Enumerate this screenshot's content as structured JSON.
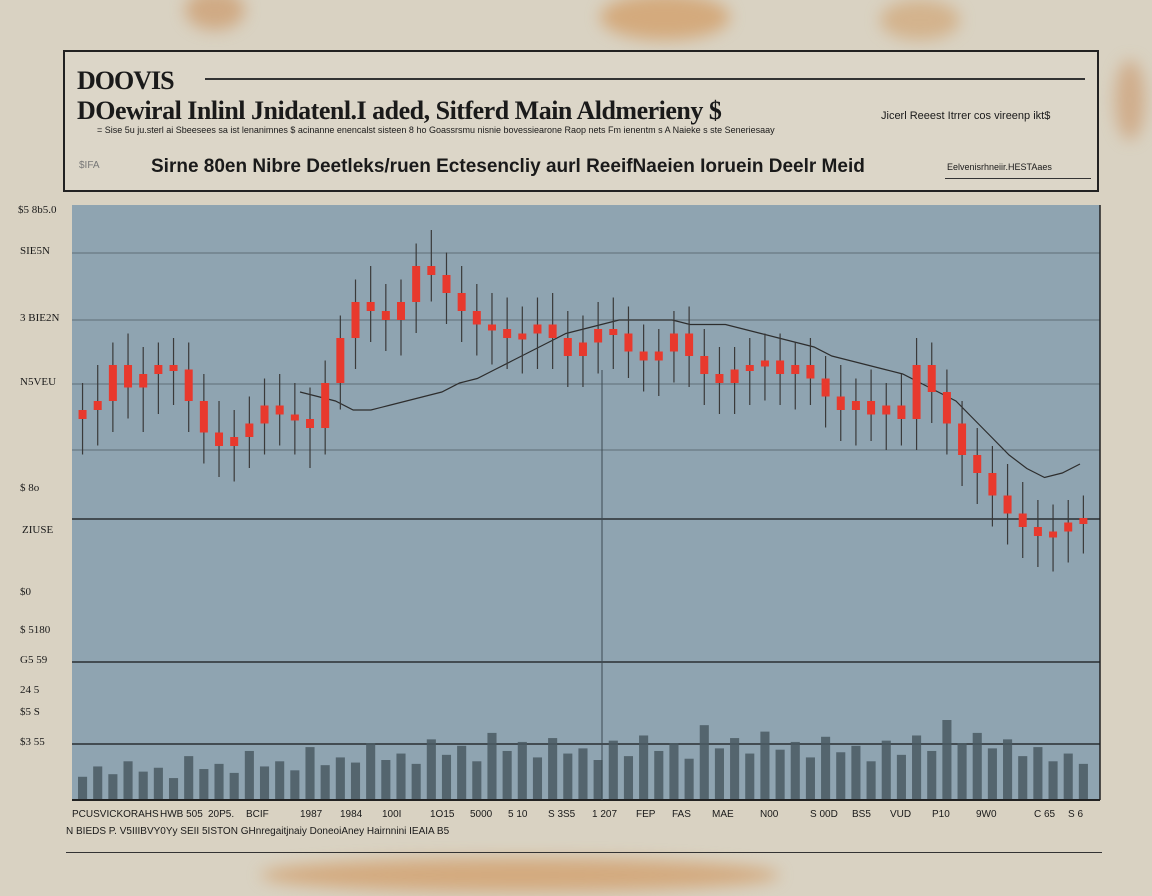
{
  "header": {
    "title": "DOOVIS",
    "subtitle": "DOewiral Inlinl Jnidatenl.I aded, Sitferd Main Aldmerieny $",
    "note_right": "Jicerl  Reeest  Itrrer cos vireenp ikt$",
    "fine_print": "= Sise 5u  ju.sterl  ai  Sbeesees  sa ist  lenanimnes  $ acinanne  enencalst  sisteen  8 ho  Goassrsmu  nisnie  bovessiearone  Raop  nets  Fm  ienentm  s  A  Naieke  s  ste  Seneriesaay",
    "caption": "Sirne 80en Nibre Deetleks/ruen Ectesencliy aurl ReeifNaeien Ioruein Deelr Meid",
    "caption_right": "Eelvenisrhneiir.HESTAaes",
    "small_mark": "$IFA"
  },
  "y_axis": {
    "top_label": "$5 8b5.0",
    "ticks": [
      "SIE5N",
      "3 BIE2N",
      "N5VEU",
      "$ 8o",
      "ZIUSE",
      "$0",
      "$ 5180",
      "G5 59",
      "24 5",
      "$5 S",
      "$3 55"
    ]
  },
  "x_axis": {
    "ticks": [
      "PCUSVICKORAHS",
      "HWB  505",
      "20P5.",
      "BCIF",
      "1987",
      "1984",
      "100I",
      "1O15",
      "5000",
      "5 10",
      "S  3S5",
      "1 207",
      "FEP",
      "FAS",
      "MAE",
      "N00",
      "S  00D",
      "BS5",
      "VUD",
      "P10",
      "9W0",
      "C 65",
      "S 6"
    ]
  },
  "footer": {
    "note": "N  BIEDS  P. V5IIIBVY0Yy  SEII  5ISTON  GHnregaitjnaiy DoneoiAney  Hairnnini IEAIA  B5"
  },
  "colors": {
    "plot_bg": "#8fa4b1",
    "candle": "#e8392d",
    "wick": "#3a3a3a",
    "volume": "#4a5a63"
  },
  "chart_data": {
    "type": "candlestick",
    "title": "",
    "xlabel": "",
    "ylabel": "",
    "ylim": [
      0,
      100
    ],
    "grid": true,
    "ohlc": [
      [
        58,
        62,
        55,
        60
      ],
      [
        60,
        66,
        57,
        62
      ],
      [
        62,
        71,
        60,
        70
      ],
      [
        70,
        73,
        63,
        65
      ],
      [
        65,
        70,
        60,
        68
      ],
      [
        68,
        71,
        64,
        70
      ],
      [
        70,
        72,
        66,
        69
      ],
      [
        69,
        71,
        60,
        62
      ],
      [
        62,
        64,
        53,
        55
      ],
      [
        55,
        58,
        50,
        52
      ],
      [
        52,
        56,
        49,
        54
      ],
      [
        54,
        59,
        52,
        57
      ],
      [
        57,
        63,
        55,
        61
      ],
      [
        61,
        64,
        57,
        59
      ],
      [
        59,
        62,
        55,
        58
      ],
      [
        58,
        61,
        52,
        56
      ],
      [
        56,
        67,
        55,
        66
      ],
      [
        66,
        77,
        65,
        76
      ],
      [
        76,
        85,
        74,
        84
      ],
      [
        84,
        88,
        80,
        82
      ],
      [
        82,
        84,
        78,
        80
      ],
      [
        80,
        85,
        77,
        84
      ],
      [
        84,
        93,
        82,
        92
      ],
      [
        92,
        96,
        89,
        90
      ],
      [
        90,
        91,
        84,
        86
      ],
      [
        86,
        88,
        80,
        82
      ],
      [
        82,
        84,
        77,
        79
      ],
      [
        79,
        82,
        75,
        78
      ],
      [
        78,
        81,
        74,
        76
      ],
      [
        76,
        79,
        73,
        77
      ],
      [
        77,
        81,
        74,
        79
      ],
      [
        79,
        82,
        74,
        76
      ],
      [
        76,
        78,
        70,
        72
      ],
      [
        72,
        77,
        70,
        75
      ],
      [
        75,
        80,
        73,
        78
      ],
      [
        78,
        81,
        74,
        77
      ],
      [
        77,
        79,
        72,
        73
      ],
      [
        73,
        75,
        69,
        71
      ],
      [
        71,
        74,
        68,
        73
      ],
      [
        73,
        78,
        71,
        77
      ],
      [
        77,
        79,
        70,
        72
      ],
      [
        72,
        74,
        66,
        68
      ],
      [
        68,
        70,
        64,
        66
      ],
      [
        66,
        70,
        64,
        69
      ],
      [
        69,
        72,
        66,
        70
      ],
      [
        70,
        73,
        67,
        71
      ],
      [
        71,
        73,
        66,
        68
      ],
      [
        68,
        71,
        65,
        70
      ],
      [
        70,
        72,
        66,
        67
      ],
      [
        67,
        68,
        61,
        63
      ],
      [
        63,
        66,
        58,
        60
      ],
      [
        60,
        63,
        57,
        62
      ],
      [
        62,
        65,
        58,
        59
      ],
      [
        59,
        62,
        56,
        61
      ],
      [
        61,
        64,
        57,
        58
      ],
      [
        58,
        72,
        56,
        70
      ],
      [
        70,
        71,
        62,
        64
      ],
      [
        64,
        65,
        55,
        57
      ],
      [
        57,
        58,
        48,
        50
      ],
      [
        50,
        52,
        44,
        46
      ],
      [
        46,
        48,
        39,
        41
      ],
      [
        41,
        44,
        35,
        37
      ],
      [
        37,
        40,
        32,
        34
      ],
      [
        34,
        36,
        30,
        32
      ],
      [
        32,
        35,
        29,
        33
      ],
      [
        33,
        36,
        31,
        35
      ],
      [
        35,
        37,
        33,
        36
      ]
    ],
    "volume": [
      18,
      26,
      20,
      30,
      22,
      25,
      17,
      34,
      24,
      28,
      21,
      38,
      26,
      30,
      23,
      41,
      27,
      33,
      29,
      44,
      31,
      36,
      28,
      47,
      35,
      42,
      30,
      52,
      38,
      45,
      33,
      48,
      36,
      40,
      31,
      46,
      34,
      50,
      38,
      44,
      32,
      58,
      40,
      48,
      36,
      53,
      39,
      45,
      33,
      49,
      37,
      42,
      30,
      46,
      35,
      50,
      38,
      62,
      44,
      52,
      40,
      47,
      34,
      41,
      30,
      36,
      28
    ],
    "overlay_line": [
      64,
      63,
      62,
      60,
      60,
      61,
      62,
      63,
      64,
      66,
      67,
      69,
      71,
      73,
      75,
      77,
      78,
      79,
      80,
      80,
      80,
      80,
      79,
      79,
      79,
      78,
      77,
      76,
      75,
      74,
      72,
      71,
      70,
      69,
      68,
      66,
      64,
      62,
      58,
      54,
      50,
      47,
      45,
      46,
      48
    ]
  }
}
